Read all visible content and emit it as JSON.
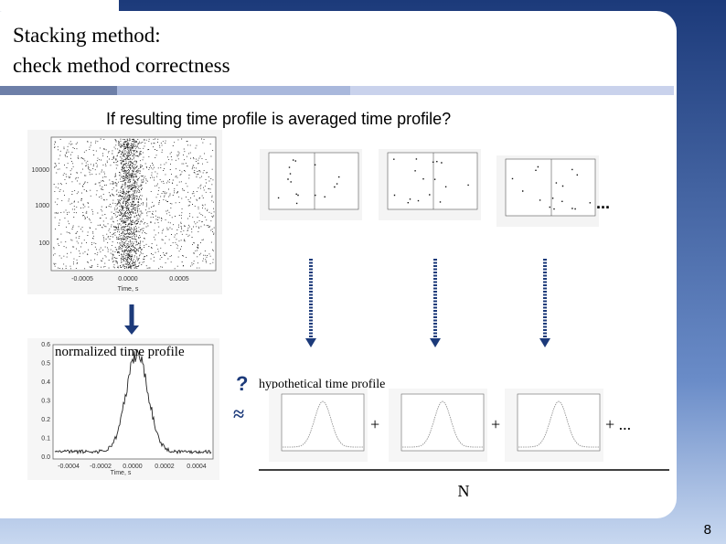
{
  "header": {
    "title_lines": [
      "Stacking method:",
      "check method correctness"
    ]
  },
  "question": "If resulting time profile is averaged time profile?",
  "scatter_plot": {
    "yticks": [
      "10000",
      "1000",
      "100"
    ],
    "xticks": [
      "-0.0005",
      "0.0000",
      "0.0005"
    ],
    "xlabel": "Time, s"
  },
  "ellipsis_top": "...",
  "normalized_plot": {
    "label": "normalized time profile",
    "yticks": [
      "0.6",
      "0.5",
      "0.4",
      "0.3",
      "0.2",
      "0.1",
      "0.0"
    ],
    "xticks": [
      "-0.0004",
      "-0.0002",
      "0.0000",
      "0.0002",
      "0.0004"
    ],
    "xlabel": "Time, s"
  },
  "question_mark": "?",
  "approx": "≈",
  "hypothetical_label": "hypothetical time profile",
  "plus_signs": [
    "+",
    "+",
    "+ ..."
  ],
  "denominator": "N",
  "page_number": "8"
}
